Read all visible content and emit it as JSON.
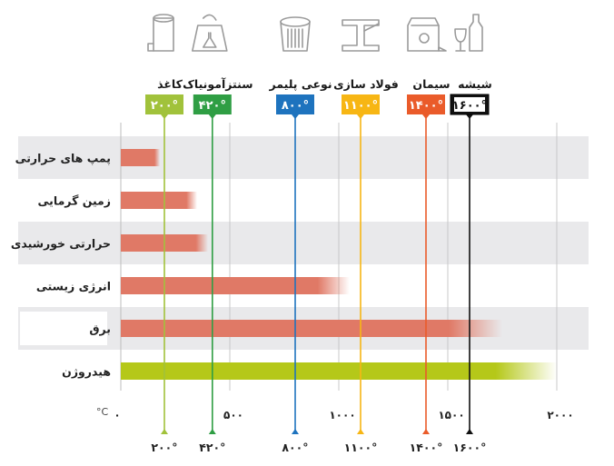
{
  "chart_data": {
    "type": "bar",
    "orientation": "horizontal",
    "unit_label": "°C",
    "xlim": [
      0,
      2000
    ],
    "x_ticks": [
      {
        "value": 0,
        "label": "۰"
      },
      {
        "value": 500,
        "label": "۵۰۰"
      },
      {
        "value": 1000,
        "label": "۱۰۰۰"
      },
      {
        "value": 1500,
        "label": "۱۵۰۰"
      },
      {
        "value": 2000,
        "label": "۲۰۰۰"
      }
    ],
    "categories": [
      "پمپ های حرارتی",
      "زمین گرمایی",
      "حرارتی خورشیدی",
      "انرژی زیستی",
      "برق",
      "هیدروژن"
    ],
    "values": [
      180,
      350,
      400,
      1050,
      1750,
      2000
    ],
    "bar_colors": [
      "#e07966",
      "#e07966",
      "#e07966",
      "#e07966",
      "#e07966",
      "#b5c819"
    ],
    "industries": [
      {
        "name": "کاغذ",
        "temp": 200,
        "badge": "۲۰۰°",
        "bottom": "۲۰۰°",
        "color": "#a1c23b",
        "text_color": "#ffffff",
        "icon": "paper-roll-icon"
      },
      {
        "name": "سنتزآمونیاک",
        "temp": 420,
        "badge": "۴۲۰°",
        "bottom": "۴۲۰°",
        "color": "#2f9e44",
        "text_color": "#ffffff",
        "icon": "ammonia-flask-icon"
      },
      {
        "name": "نوعی پلیمر",
        "temp": 800,
        "badge": "۸۰۰°",
        "bottom": "۸۰۰°",
        "color": "#1e73be",
        "text_color": "#ffffff",
        "icon": "polymer-bin-icon"
      },
      {
        "name": "فولاد سازی",
        "temp": 1100,
        "badge": "۱۱۰۰°",
        "bottom": "۱۱۰۰°",
        "color": "#f7b614",
        "text_color": "#ffffff",
        "icon": "steel-beam-icon"
      },
      {
        "name": "سیمان",
        "temp": 1400,
        "badge": "۱۴۰۰°",
        "bottom": "۱۴۰۰°",
        "color": "#ea5b2a",
        "text_color": "#ffffff",
        "icon": "cement-bag-icon"
      },
      {
        "name": "شیشه",
        "temp": 1600,
        "badge": "۱۶۰۰°",
        "bottom": "۱۶۰۰°",
        "color": "#111111",
        "text_color": "#ffffff",
        "icon": "glass-bottle-icon"
      }
    ]
  }
}
